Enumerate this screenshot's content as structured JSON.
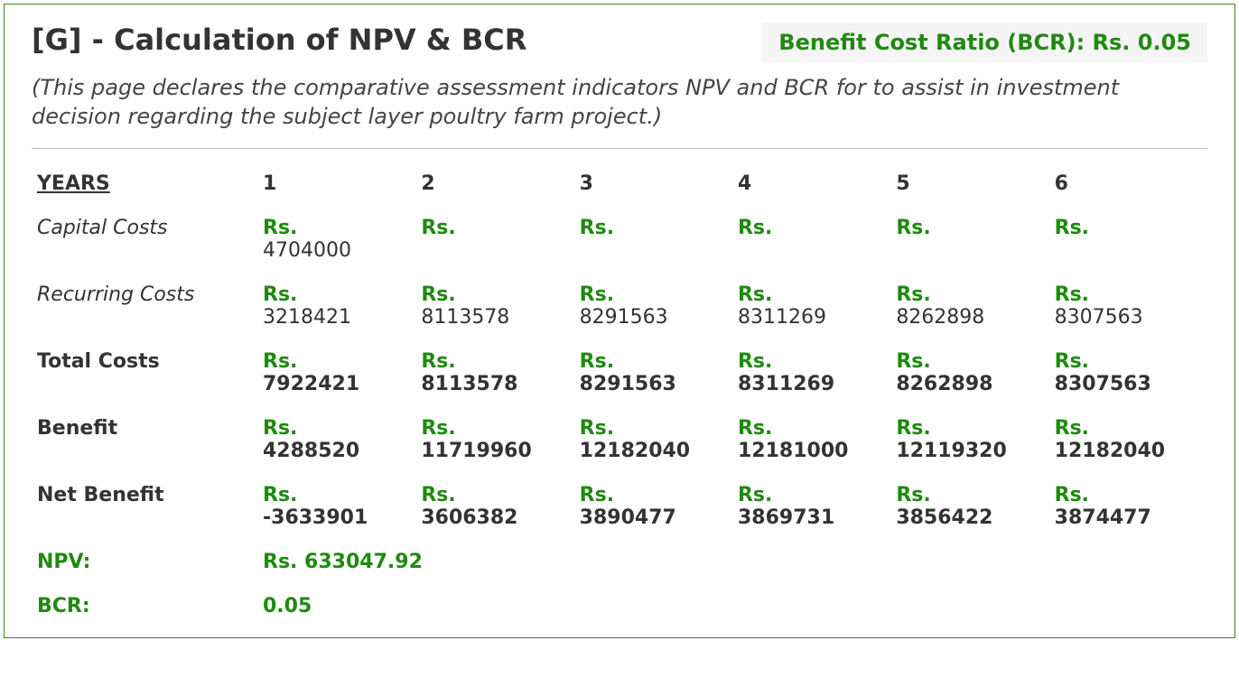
{
  "colors": {
    "border": "#388e1c",
    "accent_green": "#1f8a0f",
    "text": "#333333",
    "badge_bg": "#f5f5f5",
    "separator": "#bdbdbd",
    "background": "#ffffff"
  },
  "typography": {
    "title_fontsize": 32,
    "subtitle_fontsize": 24,
    "cell_fontsize": 22,
    "header_fontsize": 24
  },
  "header": {
    "title": "[G] - Calculation of NPV & BCR",
    "bcr_badge": "Benefit Cost Ratio (BCR): Rs. 0.05",
    "subtitle": "(This page declares the comparative assessment indicators NPV and BCR for to assist in investment decision regarding the subject layer poultry farm project.)"
  },
  "table": {
    "years_label": "YEARS",
    "currency_prefix": "Rs.",
    "columns": [
      "1",
      "2",
      "3",
      "4",
      "5",
      "6"
    ],
    "rows": [
      {
        "key": "capital_costs",
        "label": "Capital Costs",
        "style": "italic",
        "values": [
          "4704000",
          "",
          "",
          "",
          "",
          ""
        ]
      },
      {
        "key": "recurring_costs",
        "label": "Recurring Costs",
        "style": "italic",
        "values": [
          "3218421",
          "8113578",
          "8291563",
          "8311269",
          "8262898",
          "8307563"
        ]
      },
      {
        "key": "total_costs",
        "label": "Total Costs",
        "style": "bold",
        "values": [
          "7922421",
          "8113578",
          "8291563",
          "8311269",
          "8262898",
          "8307563"
        ]
      },
      {
        "key": "benefit",
        "label": "Benefit",
        "style": "bold",
        "values": [
          "4288520",
          "11719960",
          "12182040",
          "12181000",
          "12119320",
          "12182040"
        ]
      },
      {
        "key": "net_benefit",
        "label": "Net Benefit",
        "style": "bold",
        "values": [
          "-3633901",
          "3606382",
          "3890477",
          "3869731",
          "3856422",
          "3874477"
        ]
      }
    ]
  },
  "summary": {
    "npv_label": "NPV:",
    "npv_value": "Rs. 633047.92",
    "bcr_label": "BCR:",
    "bcr_value": "0.05"
  }
}
